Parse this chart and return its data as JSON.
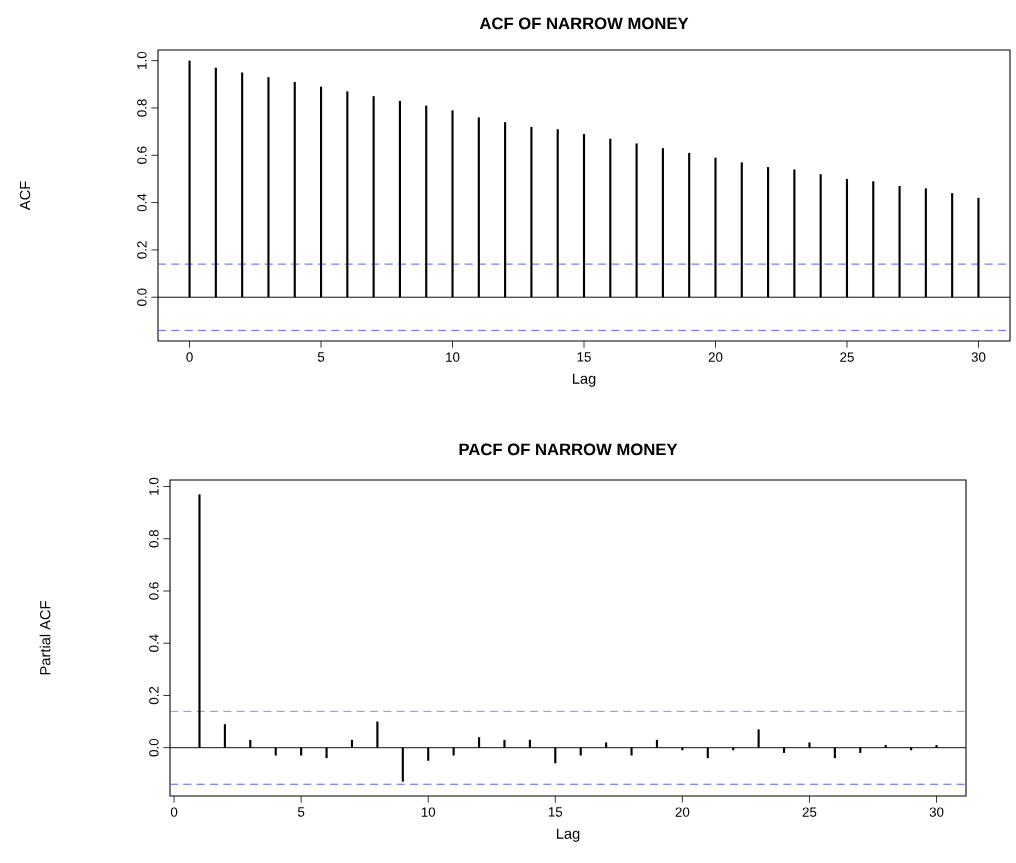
{
  "chart_data": [
    {
      "type": "bar",
      "title": "ACF OF NARROW MONEY",
      "xlabel": "Lag",
      "ylabel": "ACF",
      "x": [
        0,
        1,
        2,
        3,
        4,
        5,
        6,
        7,
        8,
        9,
        10,
        11,
        12,
        13,
        14,
        15,
        16,
        17,
        18,
        19,
        20,
        21,
        22,
        23,
        24,
        25,
        26,
        27,
        28,
        29,
        30
      ],
      "series": [
        {
          "color": "#000000",
          "values": [
            1.0,
            0.97,
            0.95,
            0.93,
            0.91,
            0.89,
            0.87,
            0.85,
            0.83,
            0.81,
            0.79,
            0.76,
            0.74,
            0.72,
            0.71,
            0.69,
            0.67,
            0.65,
            0.63,
            0.61,
            0.59,
            0.57,
            0.55,
            0.54,
            0.52,
            0.5,
            0.49,
            0.47,
            0.46,
            0.44,
            0.42
          ]
        }
      ],
      "xlim": [
        -1.2,
        31.2
      ],
      "ylim": [
        -0.185,
        1.045
      ],
      "xticks": [
        0,
        5,
        10,
        15,
        20,
        25,
        30
      ],
      "yticks": [
        {
          "value": 0,
          "label": "0.0"
        },
        {
          "value": 0.2,
          "label": "0.2"
        },
        {
          "value": 0.4,
          "label": "0.4"
        },
        {
          "value": 0.6,
          "label": "0.6"
        },
        {
          "value": 0.8,
          "label": "0.8"
        },
        {
          "value": 1,
          "label": "1.0"
        }
      ],
      "ref_lines": [
        {
          "axis": "y",
          "value": 0,
          "color": "#000000",
          "line_style": "solid"
        },
        {
          "axis": "y",
          "value": 0.14,
          "color": "#4d4dff",
          "line_style": "dashed"
        },
        {
          "axis": "y",
          "value": -0.14,
          "color": "#4d4dff",
          "line_style": "dashed"
        }
      ],
      "grid": false
    },
    {
      "type": "bar",
      "title": "PACF OF NARROW MONEY",
      "xlabel": "Lag",
      "ylabel": "Partial ACF",
      "x": [
        1,
        2,
        3,
        4,
        5,
        6,
        7,
        8,
        9,
        10,
        11,
        12,
        13,
        14,
        15,
        16,
        17,
        18,
        19,
        20,
        21,
        22,
        23,
        24,
        25,
        26,
        27,
        28,
        29,
        30
      ],
      "series": [
        {
          "color": "#000000",
          "values": [
            0.97,
            0.09,
            0.03,
            -0.03,
            -0.03,
            -0.04,
            0.03,
            0.1,
            -0.13,
            -0.05,
            -0.03,
            0.04,
            0.03,
            0.03,
            -0.06,
            -0.03,
            0.02,
            -0.03,
            0.03,
            -0.01,
            -0.04,
            -0.01,
            0.07,
            -0.02,
            0.02,
            -0.04,
            -0.02,
            0.01,
            -0.01,
            0.01
          ]
        }
      ],
      "xlim": [
        -0.16,
        31.16
      ],
      "ylim": [
        -0.185,
        1.025
      ],
      "xticks": [
        0,
        5,
        10,
        15,
        20,
        25,
        30
      ],
      "yticks": [
        {
          "value": 0,
          "label": "0.0"
        },
        {
          "value": 0.2,
          "label": "0.2"
        },
        {
          "value": 0.4,
          "label": "0.4"
        },
        {
          "value": 0.6,
          "label": "0.6"
        },
        {
          "value": 0.8,
          "label": "0.8"
        },
        {
          "value": 1,
          "label": "1.0"
        }
      ],
      "ref_lines": [
        {
          "axis": "y",
          "value": 0,
          "color": "#000000",
          "line_style": "solid"
        },
        {
          "axis": "y",
          "value": 0.14,
          "color": "#4d4dff",
          "line_style": "dashed"
        },
        {
          "axis": "y",
          "value": -0.14,
          "color": "#4d4dff",
          "line_style": "dashed"
        }
      ],
      "grid": false
    }
  ]
}
